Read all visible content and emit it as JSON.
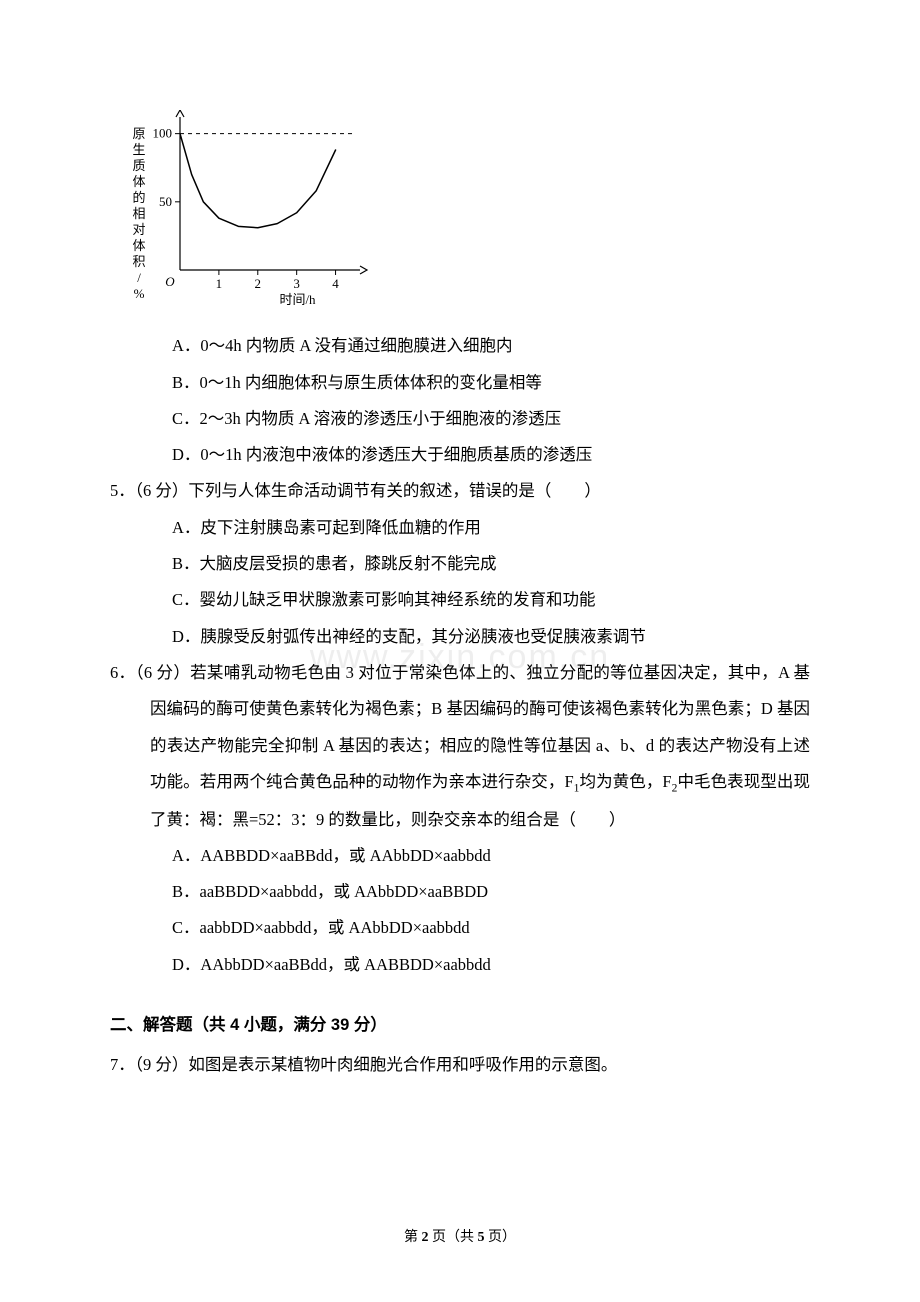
{
  "chart": {
    "type": "line",
    "x_label": "时间/h",
    "y_label": "原生质体的相对体积/%",
    "x_ticks": [
      "1",
      "2",
      "3",
      "4"
    ],
    "y_ticks": [
      "50",
      "100"
    ],
    "xlim": [
      0,
      4.5
    ],
    "ylim": [
      0,
      110
    ],
    "origin_label": "O",
    "curve_points": [
      [
        0,
        100
      ],
      [
        0.3,
        70
      ],
      [
        0.6,
        50
      ],
      [
        1.0,
        38
      ],
      [
        1.5,
        32
      ],
      [
        2.0,
        31
      ],
      [
        2.5,
        34
      ],
      [
        3.0,
        42
      ],
      [
        3.5,
        58
      ],
      [
        4.0,
        88
      ]
    ],
    "dash_y_value": 100,
    "axis_color": "#000000",
    "curve_color": "#000000",
    "dash_color": "#000000",
    "label_fontsize": 13,
    "tick_fontsize": 13,
    "curve_width": 1.5,
    "axis_width": 1.2,
    "background_color": "#ffffff"
  },
  "q4": {
    "optA": "A．0～4h 内物质 A 没有通过细胞膜进入细胞内",
    "optB": "B．0～1h 内细胞体积与原生质体体积的变化量相等",
    "optC": "C．2～3h 内物质 A 溶液的渗透压小于细胞液的渗透压",
    "optD": "D．0～1h 内液泡中液体的渗透压大于细胞质基质的渗透压"
  },
  "q5": {
    "stem": "5．（6 分）下列与人体生命活动调节有关的叙述，错误的是（　　）",
    "optA": "A．皮下注射胰岛素可起到降低血糖的作用",
    "optB": "B．大脑皮层受损的患者，膝跳反射不能完成",
    "optC": "C．婴幼儿缺乏甲状腺激素可影响其神经系统的发育和功能",
    "optD": "D．胰腺受反射弧传出神经的支配，其分泌胰液也受促胰液素调节"
  },
  "q6": {
    "stem_p1": "6．（6 分）若某哺乳动物毛色由 3 对位于常染色体上的、独立分配的等位基因决定，其中，A 基因编码的酶可使黄色素转化为褐色素；B 基因编码的酶可使该褐色素转化为黑色素；D 基因的表达产物能完全抑制 A 基因的表达；相应的隐性等位基因 a、b、d 的表达产物没有上述功能。若用两个纯合黄色品种的动物作为亲本进行杂交，F",
    "stem_p2": "均为黄色，F",
    "stem_p3": "中毛色表现型出现了黄：褐：黑=52：3：9 的数量比，则杂交亲本的组合是（　　）",
    "optA": "A．AABBDD×aaBBdd，或 AAbbDD×aabbdd",
    "optB": "B．aaBBDD×aabbdd，或 AAbbDD×aaBBDD",
    "optC": "C．aabbDD×aabbdd，或 AAbbDD×aabbdd",
    "optD": "D．AAbbDD×aaBBdd，或 AABBDD×aabbdd"
  },
  "section2": {
    "title": "二、解答题（共 4 小题，满分 39 分）"
  },
  "q7": {
    "stem": "7．（9 分）如图是表示某植物叶肉细胞光合作用和呼吸作用的示意图。"
  },
  "footer": {
    "prefix": "第 ",
    "page": "2",
    "middle": " 页（共 ",
    "total": "5",
    "suffix": " 页）"
  },
  "watermark": "www.zixin.com.cn"
}
